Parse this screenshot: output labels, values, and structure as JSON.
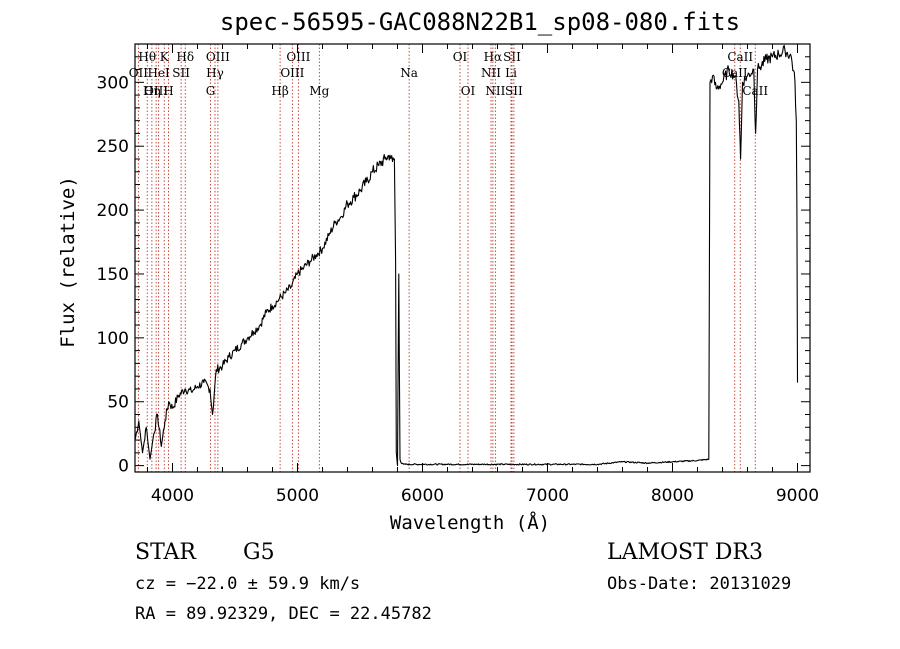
{
  "figure": {
    "title": "spec-56595-GAC088N22B1_sp08-080.fits",
    "object_class": "STAR",
    "subclass": "G5",
    "survey": "LAMOST DR3",
    "cz": "cz = −22.0 ± 59.9 km/s",
    "obs_date": "Obs-Date: 20131029",
    "ra_dec": "RA =  89.92329, DEC =  22.45782"
  },
  "colors": {
    "spectrum": "#000000",
    "line_markers": "#c0392b",
    "axes": "#000000"
  },
  "chart_data": {
    "type": "line",
    "title": "spec-56595-GAC088N22B1_sp08-080.fits",
    "xlabel": "Wavelength (Å)",
    "ylabel": "Flux (relative)",
    "xlim": [
      3700,
      9100
    ],
    "ylim": [
      -5,
      330
    ],
    "xticks": [
      4000,
      5000,
      6000,
      7000,
      8000,
      9000
    ],
    "yticks": [
      0,
      50,
      100,
      150,
      200,
      250,
      300
    ],
    "series": [
      {
        "name": "flux",
        "x": [
          3700,
          3730,
          3760,
          3790,
          3820,
          3850,
          3880,
          3910,
          3940,
          3970,
          4000,
          4050,
          4100,
          4150,
          4200,
          4250,
          4300,
          4320,
          4350,
          4400,
          4450,
          4500,
          4550,
          4600,
          4650,
          4700,
          4750,
          4800,
          4850,
          4900,
          4950,
          5000,
          5050,
          5100,
          5150,
          5200,
          5250,
          5300,
          5350,
          5400,
          5450,
          5500,
          5550,
          5600,
          5650,
          5700,
          5740,
          5760,
          5775,
          5785,
          5790,
          5800,
          5810,
          5820,
          5830,
          5850,
          6000,
          6500,
          7000,
          7200,
          7400,
          7600,
          7800,
          8000,
          8200,
          8290,
          8300,
          8320,
          8350,
          8400,
          8450,
          8500,
          8530,
          8545,
          8560,
          8600,
          8650,
          8665,
          8680,
          8700,
          8750,
          8800,
          8850,
          8900,
          8950,
          8980,
          8990,
          8995,
          9000
        ],
        "values": [
          20,
          35,
          10,
          30,
          5,
          25,
          40,
          15,
          35,
          50,
          45,
          55,
          60,
          58,
          62,
          65,
          60,
          40,
          75,
          78,
          85,
          90,
          95,
          100,
          105,
          110,
          120,
          125,
          130,
          135,
          140,
          150,
          155,
          160,
          165,
          170,
          180,
          190,
          195,
          205,
          210,
          215,
          222,
          230,
          235,
          240,
          243,
          238,
          240,
          160,
          10,
          0,
          150,
          5,
          2,
          1,
          1,
          1,
          1,
          1,
          1,
          3,
          2,
          3,
          4,
          5,
          300,
          305,
          295,
          300,
          310,
          305,
          285,
          240,
          300,
          305,
          310,
          260,
          310,
          312,
          318,
          320,
          322,
          325,
          320,
          300,
          270,
          200,
          65
        ]
      }
    ],
    "spectral_lines": [
      {
        "name": "Hθ",
        "wavelength": 3798,
        "row": 0
      },
      {
        "name": "OII",
        "wavelength": 3727,
        "row": 1
      },
      {
        "name": "OIII",
        "wavelength": 3869,
        "row": 2
      },
      {
        "name": "K",
        "wavelength": 3934,
        "row": 0
      },
      {
        "name": "HeI",
        "wavelength": 3889,
        "row": 1
      },
      {
        "name": "Hη",
        "wavelength": 3835,
        "row": 2
      },
      {
        "name": "Hδ",
        "wavelength": 4102,
        "row": 0
      },
      {
        "name": "SII",
        "wavelength": 4069,
        "row": 1
      },
      {
        "name": "H",
        "wavelength": 3968,
        "row": 2
      },
      {
        "name": "OIII",
        "wavelength": 4363,
        "row": 0
      },
      {
        "name": "Hγ",
        "wavelength": 4340,
        "row": 1
      },
      {
        "name": "G",
        "wavelength": 4304,
        "row": 2
      },
      {
        "name": "Hβ",
        "wavelength": 4861,
        "row": 2
      },
      {
        "name": "OIII",
        "wavelength": 5007,
        "row": 0
      },
      {
        "name": "OIII",
        "wavelength": 4959,
        "row": 1
      },
      {
        "name": "Mg",
        "wavelength": 5175,
        "row": 2
      },
      {
        "name": "Na",
        "wavelength": 5893,
        "row": 1
      },
      {
        "name": "OI",
        "wavelength": 6300,
        "row": 0
      },
      {
        "name": "OI",
        "wavelength": 6364,
        "row": 2
      },
      {
        "name": "Hα",
        "wavelength": 6563,
        "row": 0
      },
      {
        "name": "NII",
        "wavelength": 6548,
        "row": 1
      },
      {
        "name": "NII",
        "wavelength": 6583,
        "row": 2
      },
      {
        "name": "SII",
        "wavelength": 6716,
        "row": 0
      },
      {
        "name": "Li",
        "wavelength": 6708,
        "row": 1
      },
      {
        "name": "SII",
        "wavelength": 6731,
        "row": 2
      },
      {
        "name": "CaII",
        "wavelength": 8542,
        "row": 0
      },
      {
        "name": "CaII",
        "wavelength": 8498,
        "row": 1
      },
      {
        "name": "CaII",
        "wavelength": 8662,
        "row": 2
      }
    ]
  }
}
